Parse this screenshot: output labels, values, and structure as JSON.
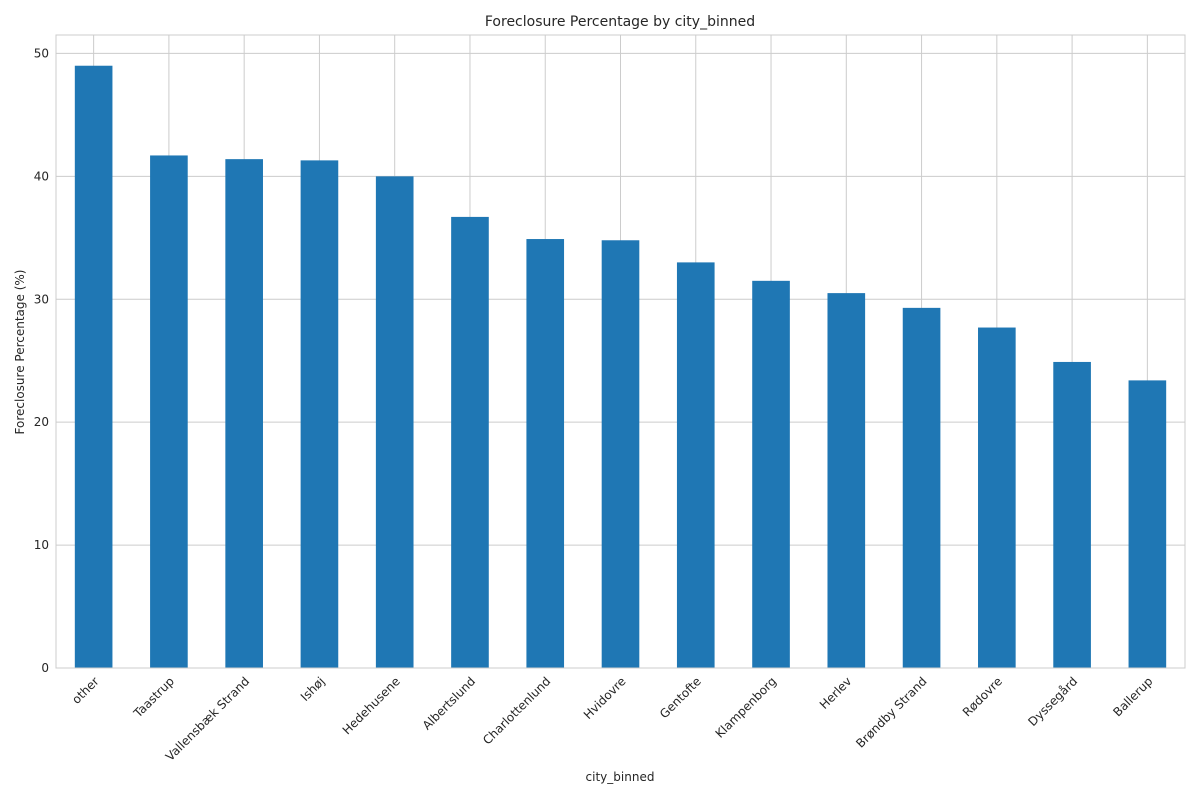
{
  "chart_data": {
    "type": "bar",
    "title": "Foreclosure Percentage by city_binned",
    "xlabel": "city_binned",
    "ylabel": "Foreclosure Percentage (%)",
    "categories": [
      "other",
      "Taastrup",
      "Vallensbæk Strand",
      "Ishøj",
      "Hedehusene",
      "Albertslund",
      "Charlottenlund",
      "Hvidovre",
      "Gentofte",
      "Klampenborg",
      "Herlev",
      "Brøndby Strand",
      "Rødovre",
      "Dyssegård",
      "Ballerup"
    ],
    "values": [
      49.0,
      41.7,
      41.4,
      41.3,
      40.0,
      36.7,
      34.9,
      34.8,
      33.0,
      31.5,
      30.5,
      29.3,
      27.7,
      24.9,
      23.4
    ],
    "ylim": [
      0,
      51.5
    ],
    "yticks": [
      0,
      10,
      20,
      30,
      40,
      50
    ],
    "grid": true,
    "color": "#1f77b4"
  }
}
